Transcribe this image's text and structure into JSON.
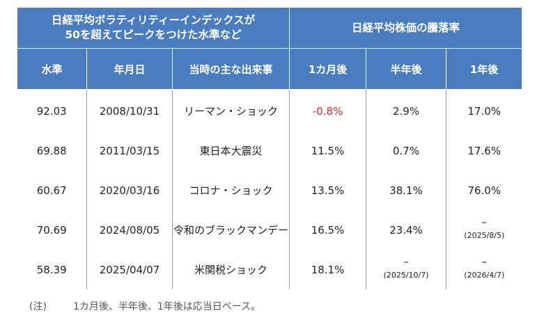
{
  "header": {
    "group_left_line1": "日経平均ボラティリティーインデックスが",
    "group_left_line2": "50を超えてピークをつけた水準など",
    "group_right": "日経平均株価の騰落率",
    "col_level": "水準",
    "col_date": "年月日",
    "col_event": "当時の主な出来事",
    "col_1m": "1カ月後",
    "col_6m": "半年後",
    "col_1y": "1年後"
  },
  "rows": [
    {
      "level": "92.03",
      "date": "2008/10/31",
      "event": "リーマン・ショック",
      "m1": "-0.8%",
      "m6": "2.9%",
      "y1": "17.0%"
    },
    {
      "level": "69.88",
      "date": "2011/03/15",
      "event": "東日本大震災",
      "m1": "11.5%",
      "m6": "0.7%",
      "y1": "17.6%"
    },
    {
      "level": "60.67",
      "date": "2020/03/16",
      "event": "コロナ・ショック",
      "m1": "13.5%",
      "m6": "38.1%",
      "y1": "76.0%"
    },
    {
      "level": "70.69",
      "date": "2024/08/05",
      "event": "令和のブラックマンデー",
      "m1": "16.5%",
      "m6": "23.4%",
      "y1": "–",
      "y1_note": "(2025/8/5)"
    },
    {
      "level": "58.39",
      "date": "2025/04/07",
      "event": "米関税ショック",
      "m1": "18.1%",
      "m6": "–",
      "m6_note": "(2025/10/7)",
      "y1": "–",
      "y1_note": "(2026/4/7)"
    }
  ],
  "colors": {
    "header_bg": "#4a7dc0",
    "negative": "#e2242c"
  },
  "footnote": {
    "label": "(注)",
    "text": "1カ月後、半年後、1年後は応当日ベース。"
  }
}
